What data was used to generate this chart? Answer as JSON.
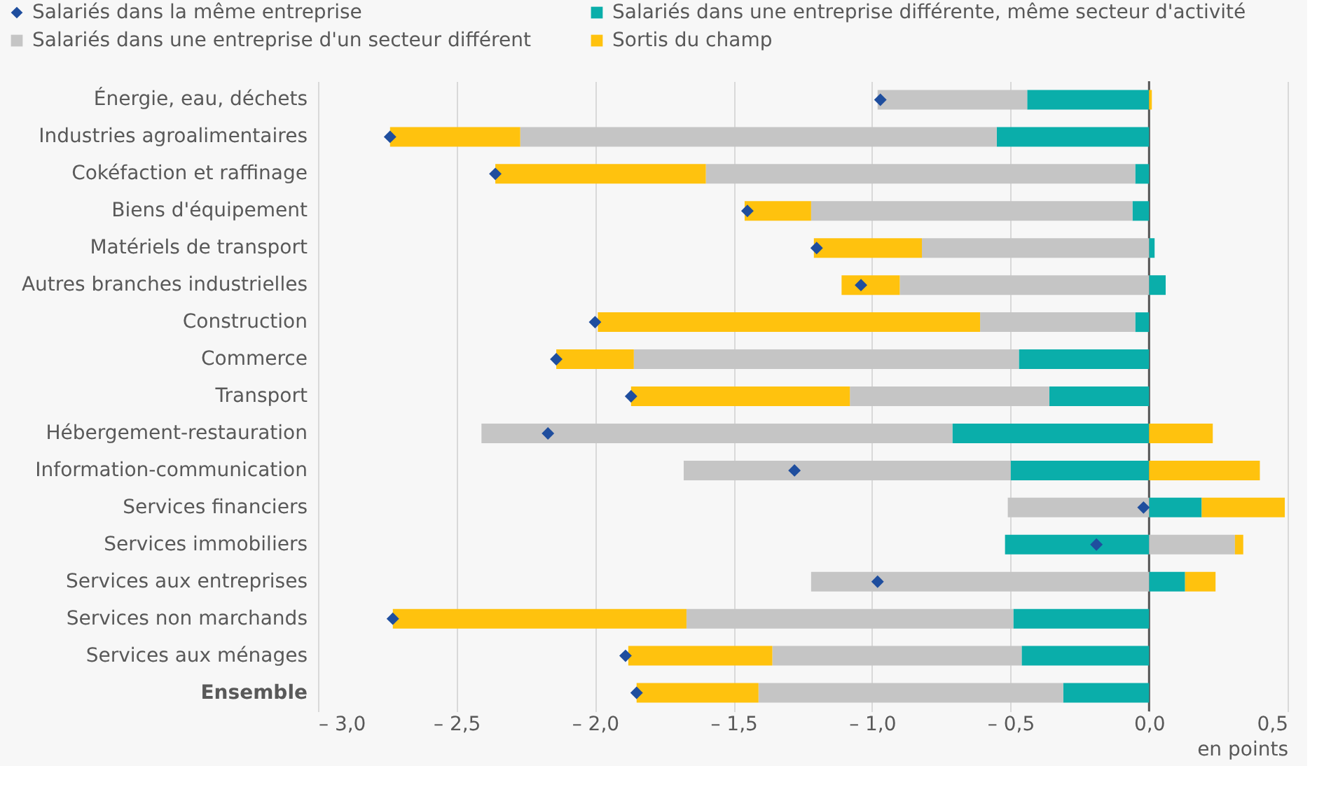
{
  "chart_data": {
    "type": "bar",
    "orientation": "horizontal",
    "stacked": true,
    "xlabel": "en points",
    "legend": "top",
    "grid": "x",
    "categories": [
      "Énergie, eau, déchets",
      "Industries agroalimentaires",
      "Cokéfaction et raffinage",
      "Biens d'équipement",
      "Matériels de transport",
      "Autres branches industrielles",
      "Construction",
      "Commerce",
      "Transport",
      "Hébergement-restauration",
      "Information-communication",
      "Services financiers",
      "Services immobiliers",
      "Services aux entreprises",
      "Services non marchands",
      "Services aux ménages",
      "Ensemble"
    ],
    "series": [
      {
        "name": "Salariés dans la même entreprise",
        "type": "scatter",
        "marker": "diamond",
        "color": "#1f4e9e",
        "values": [
          -0.97,
          -2.74,
          -2.36,
          -1.45,
          -1.2,
          -1.04,
          -2.0,
          -2.14,
          -1.87,
          -2.17,
          -1.28,
          -0.02,
          -0.19,
          -0.98,
          -2.73,
          -1.89,
          -1.85
        ]
      },
      {
        "name": "Salariés dans une entreprise différente, même secteur d'activité",
        "type": "bar",
        "color": "#0aaeaa",
        "values": [
          -0.44,
          -0.55,
          -0.05,
          -0.06,
          0.02,
          0.06,
          -0.05,
          -0.47,
          -0.36,
          -0.71,
          -0.5,
          0.19,
          -0.52,
          0.13,
          -0.49,
          -0.46,
          -0.31
        ]
      },
      {
        "name": "Salariés dans une entreprise d'un secteur différent",
        "type": "bar",
        "color": "#c5c5c5",
        "values": [
          -0.54,
          -1.72,
          -1.55,
          -1.16,
          -0.82,
          -0.9,
          -0.56,
          -1.39,
          -0.72,
          -1.7,
          -1.18,
          -0.51,
          0.31,
          -1.22,
          -1.18,
          -0.9,
          -1.1
        ]
      },
      {
        "name": "Sortis du champ",
        "type": "bar",
        "color": "#ffc20e",
        "values": [
          0.01,
          -0.47,
          -0.76,
          -0.24,
          -0.39,
          -0.21,
          -1.38,
          -0.28,
          -0.79,
          0.23,
          0.4,
          0.3,
          0.03,
          0.11,
          -1.06,
          -0.52,
          -0.44
        ]
      }
    ],
    "xlim": [
      -3.0,
      0.5
    ],
    "xticks": [
      {
        "value": -3.0,
        "label": "– 3,0"
      },
      {
        "value": -2.5,
        "label": "– 2,5"
      },
      {
        "value": -2.0,
        "label": "– 2,0"
      },
      {
        "value": -1.5,
        "label": "– 1,5"
      },
      {
        "value": -1.0,
        "label": "– 1,0"
      },
      {
        "value": -0.5,
        "label": "– 0,5"
      },
      {
        "value": 0.0,
        "label": "0,0"
      },
      {
        "value": 0.5,
        "label": "0,5"
      }
    ],
    "ref_lines": [
      {
        "axis": "x",
        "value": 0,
        "color": "#555555"
      }
    ]
  }
}
